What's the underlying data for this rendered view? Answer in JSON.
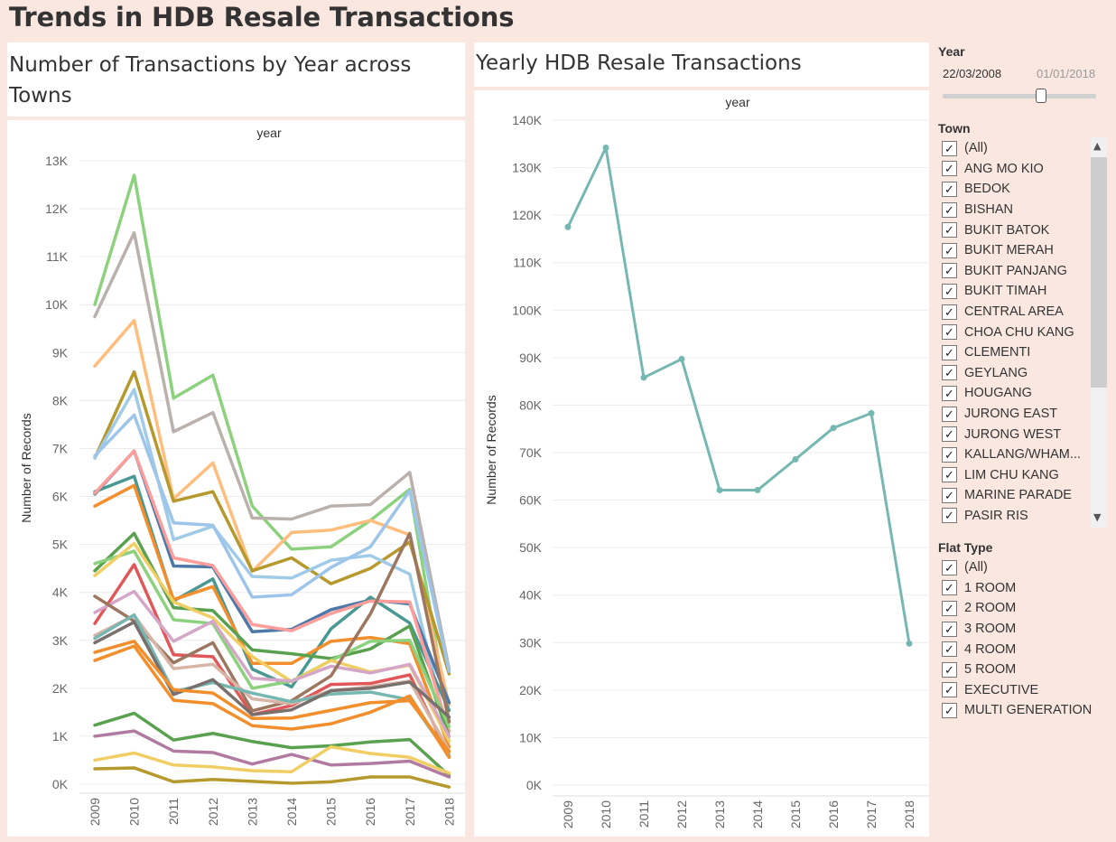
{
  "dashboard_title": "Trends in HDB Resale Transactions",
  "left_chart": {
    "title": "Number of Transactions by Year across Towns",
    "header": "year",
    "ylabel": "Number of Records",
    "yticks": [
      "0K",
      "1K",
      "2K",
      "3K",
      "4K",
      "5K",
      "6K",
      "7K",
      "8K",
      "9K",
      "10K",
      "11K",
      "12K",
      "13K"
    ]
  },
  "right_chart": {
    "title": "Yearly HDB Resale Transactions",
    "header": "year",
    "ylabel": "Number of Records",
    "yticks": [
      "0K",
      "10K",
      "20K",
      "30K",
      "40K",
      "50K",
      "60K",
      "70K",
      "80K",
      "90K",
      "100K",
      "110K",
      "120K",
      "130K",
      "140K"
    ]
  },
  "filters": {
    "year_title": "Year",
    "year_start": "22/03/2008",
    "year_end": "01/01/2018",
    "town_title": "Town",
    "towns": [
      "(All)",
      "ANG MO KIO",
      "BEDOK",
      "BISHAN",
      "BUKIT BATOK",
      "BUKIT MERAH",
      "BUKIT PANJANG",
      "BUKIT TIMAH",
      "CENTRAL AREA",
      "CHOA CHU KANG",
      "CLEMENTI",
      "GEYLANG",
      "HOUGANG",
      "JURONG EAST",
      "JURONG WEST",
      "KALLANG/WHAM...",
      "LIM CHU KANG",
      "MARINE PARADE",
      "PASIR RIS"
    ],
    "flat_title": "Flat Type",
    "flat_types": [
      "(All)",
      "1 ROOM",
      "2 ROOM",
      "3 ROOM",
      "4 ROOM",
      "5 ROOM",
      "EXECUTIVE",
      "MULTI GENERATION"
    ],
    "check_glyph": "✓"
  },
  "chart_data": [
    {
      "type": "line",
      "title": "Number of Transactions by Year across Towns",
      "xlabel": "year",
      "ylabel": "Number of Records",
      "x": [
        "2009",
        "2010",
        "2011",
        "2012",
        "2013",
        "2014",
        "2015",
        "2016",
        "2017",
        "2018"
      ],
      "ylim": [
        0,
        13000
      ],
      "series": [
        {
          "color": "#8cd17d",
          "values": [
            10000,
            12700,
            8050,
            8530,
            5800,
            4900,
            4950,
            5500,
            6150,
            1300
          ]
        },
        {
          "color": "#bab0ac",
          "values": [
            9750,
            11500,
            7350,
            7750,
            5550,
            5530,
            5800,
            5830,
            6500,
            2400
          ]
        },
        {
          "color": "#ffbe7d",
          "values": [
            8720,
            9670,
            5950,
            6700,
            4440,
            5250,
            5300,
            5500,
            5200,
            1650
          ]
        },
        {
          "color": "#b6992d",
          "values": [
            6800,
            8600,
            5900,
            6100,
            4450,
            4720,
            4180,
            4500,
            5050,
            2300
          ]
        },
        {
          "color": "#a0cbe8",
          "values": [
            6800,
            8230,
            5100,
            5380,
            4330,
            4300,
            4670,
            4770,
            4380,
            900
          ]
        },
        {
          "color": "#4e79a7",
          "values": [
            6050,
            6950,
            4550,
            4530,
            3180,
            3230,
            3640,
            3840,
            3760,
            1700
          ]
        },
        {
          "color": "#499894",
          "values": [
            6100,
            6420,
            3820,
            4280,
            2400,
            2030,
            3240,
            3900,
            3360,
            1540
          ]
        },
        {
          "color": "#9dc5ea",
          "values": [
            6850,
            7700,
            5450,
            5400,
            3900,
            3950,
            4520,
            4950,
            6120,
            2350
          ]
        },
        {
          "color": "#f28e2b",
          "values": [
            5800,
            6230,
            3850,
            4120,
            2520,
            2520,
            2980,
            3060,
            2930,
            780
          ]
        },
        {
          "color": "#ff9d9a",
          "values": [
            6070,
            6950,
            4720,
            4560,
            3330,
            3200,
            3560,
            3820,
            3800,
            1100
          ]
        },
        {
          "color": "#59a14f",
          "values": [
            4450,
            5230,
            3680,
            3620,
            2800,
            2720,
            2620,
            2820,
            3300,
            1000
          ]
        },
        {
          "color": "#8cd17d",
          "values": [
            4600,
            4860,
            3430,
            3350,
            2000,
            2150,
            2580,
            2980,
            3000,
            1200
          ]
        },
        {
          "color": "#f1ce63",
          "values": [
            4350,
            5020,
            3800,
            3470,
            2660,
            2140,
            2580,
            2340,
            2480,
            900
          ]
        },
        {
          "color": "#e15759",
          "values": [
            3350,
            4580,
            2700,
            2660,
            1450,
            1640,
            2080,
            2100,
            2280,
            600
          ]
        },
        {
          "color": "#d4a6c8",
          "values": [
            3580,
            4020,
            2980,
            3400,
            2210,
            2150,
            2460,
            2320,
            2500,
            1000
          ]
        },
        {
          "color": "#9d7660",
          "values": [
            3920,
            3400,
            2530,
            2950,
            1530,
            1740,
            2260,
            3550,
            5230,
            1300
          ]
        },
        {
          "color": "#d7b5a6",
          "values": [
            3100,
            3520,
            2410,
            2500,
            1780,
            1680,
            1950,
            2030,
            2150,
            700
          ]
        },
        {
          "color": "#76b7b2",
          "values": [
            3040,
            3530,
            1930,
            2120,
            1900,
            1720,
            1880,
            1920,
            1760,
            600
          ]
        },
        {
          "color": "#79706e",
          "values": [
            2950,
            3380,
            1870,
            2180,
            1450,
            1550,
            1950,
            2000,
            2130,
            1400
          ]
        },
        {
          "color": "#f28e2b",
          "values": [
            2750,
            2980,
            1970,
            1900,
            1370,
            1380,
            1540,
            1700,
            1740,
            680
          ]
        },
        {
          "color": "#f28e2b",
          "values": [
            2580,
            2880,
            1750,
            1680,
            1220,
            1150,
            1260,
            1500,
            1840,
            560
          ]
        },
        {
          "color": "#59a14f",
          "values": [
            1230,
            1480,
            920,
            1060,
            890,
            760,
            800,
            880,
            930,
            180
          ]
        },
        {
          "color": "#b07aa1",
          "values": [
            1000,
            1110,
            690,
            660,
            420,
            620,
            400,
            430,
            480,
            150
          ]
        },
        {
          "color": "#f1ce63",
          "values": [
            500,
            650,
            400,
            360,
            280,
            260,
            780,
            640,
            560,
            230
          ]
        },
        {
          "color": "#b6992d",
          "values": [
            320,
            340,
            50,
            100,
            60,
            20,
            50,
            150,
            150,
            -60
          ]
        }
      ]
    },
    {
      "type": "line",
      "title": "Yearly HDB Resale Transactions",
      "xlabel": "year",
      "ylabel": "Number of Records",
      "x": [
        "2009",
        "2010",
        "2011",
        "2012",
        "2013",
        "2014",
        "2015",
        "2016",
        "2017",
        "2018"
      ],
      "ylim": [
        0,
        140000
      ],
      "series": [
        {
          "color": "#76b7b2",
          "values": [
            117500,
            134200,
            85800,
            89700,
            62100,
            62100,
            68600,
            75200,
            78300,
            29800
          ]
        }
      ]
    }
  ]
}
